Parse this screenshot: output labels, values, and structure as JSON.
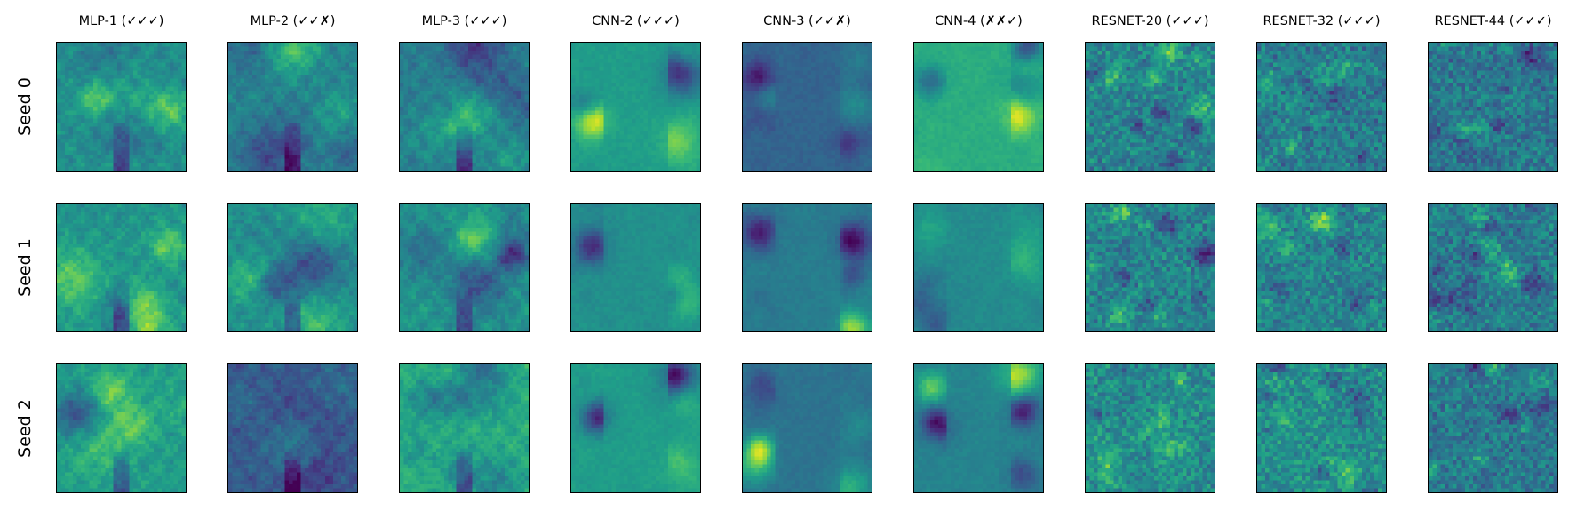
{
  "chart_data": {
    "type": "heatmap",
    "title": "",
    "xlabel": "",
    "ylabel": "",
    "colormap": "viridis",
    "columns": [
      "MLP-1 (✓✓✓)",
      "MLP-2 (✓✓✗)",
      "MLP-3 (✓✓✓)",
      "CNN-2 (✓✓✓)",
      "CNN-3 (✓✓✗)",
      "CNN-4 (✗✗✓)",
      "RESNET-20 (✓✓✓)",
      "RESNET-32 (✓✓✓)",
      "RESNET-44 (✓✓✓)"
    ],
    "rows": [
      "Seed 0",
      "Seed 1",
      "Seed 2"
    ],
    "panel_grid": [
      32,
      32
    ],
    "axis_ticks": false,
    "panel_mean_level": [
      [
        0.5,
        0.45,
        0.42,
        0.55,
        0.32,
        0.62,
        0.45,
        0.42,
        0.4
      ],
      [
        0.52,
        0.5,
        0.52,
        0.5,
        0.42,
        0.48,
        0.45,
        0.45,
        0.42
      ],
      [
        0.55,
        0.28,
        0.62,
        0.55,
        0.38,
        0.45,
        0.48,
        0.5,
        0.4
      ]
    ]
  }
}
